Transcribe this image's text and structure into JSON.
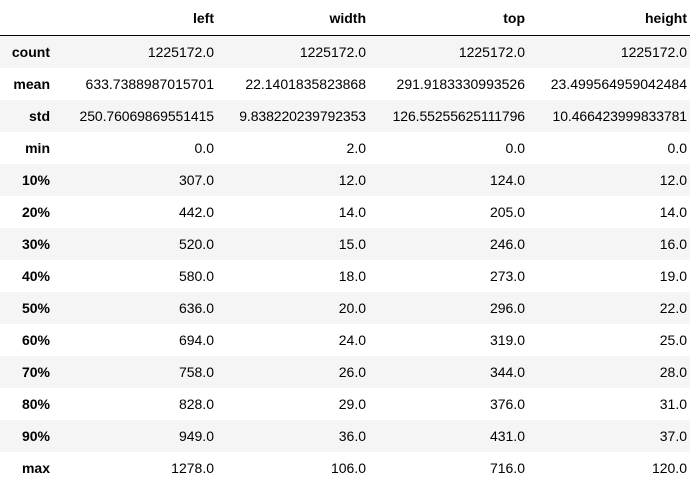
{
  "columns": [
    "left",
    "width",
    "top",
    "height"
  ],
  "index_header": "",
  "rows": [
    {
      "label": "count",
      "values": [
        "1225172.0",
        "1225172.0",
        "1225172.0",
        "1225172.0"
      ]
    },
    {
      "label": "mean",
      "values": [
        "633.7388987015701",
        "22.1401835823868",
        "291.9183330993526",
        "23.499564959042484"
      ]
    },
    {
      "label": "std",
      "values": [
        "250.76069869551415",
        "9.838220239792353",
        "126.55255625111796",
        "10.466423999833781"
      ]
    },
    {
      "label": "min",
      "values": [
        "0.0",
        "2.0",
        "0.0",
        "0.0"
      ]
    },
    {
      "label": "10%",
      "values": [
        "307.0",
        "12.0",
        "124.0",
        "12.0"
      ]
    },
    {
      "label": "20%",
      "values": [
        "442.0",
        "14.0",
        "205.0",
        "14.0"
      ]
    },
    {
      "label": "30%",
      "values": [
        "520.0",
        "15.0",
        "246.0",
        "16.0"
      ]
    },
    {
      "label": "40%",
      "values": [
        "580.0",
        "18.0",
        "273.0",
        "19.0"
      ]
    },
    {
      "label": "50%",
      "values": [
        "636.0",
        "20.0",
        "296.0",
        "22.0"
      ]
    },
    {
      "label": "60%",
      "values": [
        "694.0",
        "24.0",
        "319.0",
        "25.0"
      ]
    },
    {
      "label": "70%",
      "values": [
        "758.0",
        "26.0",
        "344.0",
        "28.0"
      ]
    },
    {
      "label": "80%",
      "values": [
        "828.0",
        "29.0",
        "376.0",
        "31.0"
      ]
    },
    {
      "label": "90%",
      "values": [
        "949.0",
        "36.0",
        "431.0",
        "37.0"
      ]
    },
    {
      "label": "max",
      "values": [
        "1278.0",
        "106.0",
        "716.0",
        "120.0"
      ]
    }
  ],
  "colors": {
    "stripe": "#f5f5f5",
    "header_rule": "#000000",
    "text": "#000000"
  }
}
